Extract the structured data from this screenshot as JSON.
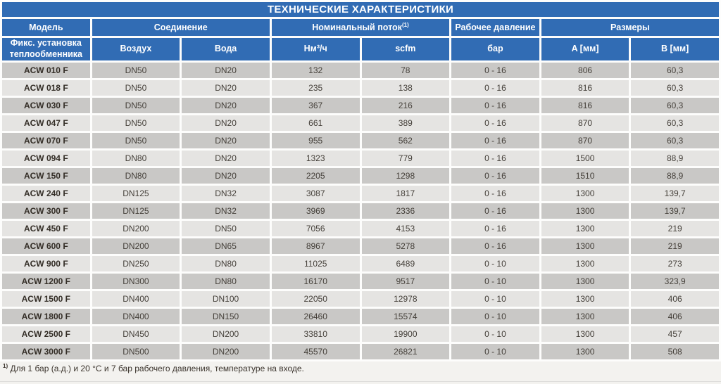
{
  "colors": {
    "header_blue": "#316cb4",
    "row_dark": "#c9c8c6",
    "row_light": "#e5e4e2",
    "page_background": "#f3f2ef",
    "header_text": "#ffffff",
    "body_text": "#45403a"
  },
  "table": {
    "title": "ТЕХНИЧЕСКИЕ ХАРАКТЕРИСТИКИ",
    "header": {
      "groups": [
        {
          "label": "Модель"
        },
        {
          "label": "Соединение"
        },
        {
          "label": "Номинальный поток",
          "sup": "(1)"
        },
        {
          "label": "Рабочее давление"
        },
        {
          "label": "Размеры"
        }
      ],
      "subheaders": [
        "Фикс. установка теплообменника",
        "Воздух",
        "Вода",
        "Нм³/ч",
        "scfm",
        "бар",
        "A [мм]",
        "B [мм]"
      ]
    },
    "row_fields": [
      "model",
      "air",
      "water",
      "nm3_h",
      "scfm",
      "pressure_bar",
      "a_mm",
      "b_mm"
    ],
    "rows": [
      {
        "model": "ACW 010 F",
        "air": "DN50",
        "water": "DN20",
        "nm3_h": "132",
        "scfm": "78",
        "pressure_bar": "0 - 16",
        "a_mm": "806",
        "b_mm": "60,3"
      },
      {
        "model": "ACW 018 F",
        "air": "DN50",
        "water": "DN20",
        "nm3_h": "235",
        "scfm": "138",
        "pressure_bar": "0 - 16",
        "a_mm": "816",
        "b_mm": "60,3"
      },
      {
        "model": "ACW 030 F",
        "air": "DN50",
        "water": "DN20",
        "nm3_h": "367",
        "scfm": "216",
        "pressure_bar": "0 - 16",
        "a_mm": "816",
        "b_mm": "60,3"
      },
      {
        "model": "ACW 047 F",
        "air": "DN50",
        "water": "DN20",
        "nm3_h": "661",
        "scfm": "389",
        "pressure_bar": "0 - 16",
        "a_mm": "870",
        "b_mm": "60,3"
      },
      {
        "model": "ACW 070 F",
        "air": "DN50",
        "water": "DN20",
        "nm3_h": "955",
        "scfm": "562",
        "pressure_bar": "0 - 16",
        "a_mm": "870",
        "b_mm": "60,3"
      },
      {
        "model": "ACW 094 F",
        "air": "DN80",
        "water": "DN20",
        "nm3_h": "1323",
        "scfm": "779",
        "pressure_bar": "0 - 16",
        "a_mm": "1500",
        "b_mm": "88,9"
      },
      {
        "model": "ACW 150 F",
        "air": "DN80",
        "water": "DN20",
        "nm3_h": "2205",
        "scfm": "1298",
        "pressure_bar": "0 - 16",
        "a_mm": "1510",
        "b_mm": "88,9"
      },
      {
        "model": "ACW 240 F",
        "air": "DN125",
        "water": "DN32",
        "nm3_h": "3087",
        "scfm": "1817",
        "pressure_bar": "0 - 16",
        "a_mm": "1300",
        "b_mm": "139,7"
      },
      {
        "model": "ACW 300 F",
        "air": "DN125",
        "water": "DN32",
        "nm3_h": "3969",
        "scfm": "2336",
        "pressure_bar": "0 - 16",
        "a_mm": "1300",
        "b_mm": "139,7"
      },
      {
        "model": "ACW 450 F",
        "air": "DN200",
        "water": "DN50",
        "nm3_h": "7056",
        "scfm": "4153",
        "pressure_bar": "0 - 16",
        "a_mm": "1300",
        "b_mm": "219"
      },
      {
        "model": "ACW 600 F",
        "air": "DN200",
        "water": "DN65",
        "nm3_h": "8967",
        "scfm": "5278",
        "pressure_bar": "0 - 16",
        "a_mm": "1300",
        "b_mm": "219"
      },
      {
        "model": "ACW 900 F",
        "air": "DN250",
        "water": "DN80",
        "nm3_h": "11025",
        "scfm": "6489",
        "pressure_bar": "0 - 10",
        "a_mm": "1300",
        "b_mm": "273"
      },
      {
        "model": "ACW 1200 F",
        "air": "DN300",
        "water": "DN80",
        "nm3_h": "16170",
        "scfm": "9517",
        "pressure_bar": "0 - 10",
        "a_mm": "1300",
        "b_mm": "323,9"
      },
      {
        "model": "ACW 1500 F",
        "air": "DN400",
        "water": "DN100",
        "nm3_h": "22050",
        "scfm": "12978",
        "pressure_bar": "0 - 10",
        "a_mm": "1300",
        "b_mm": "406"
      },
      {
        "model": "ACW 1800 F",
        "air": "DN400",
        "water": "DN150",
        "nm3_h": "26460",
        "scfm": "15574",
        "pressure_bar": "0 - 10",
        "a_mm": "1300",
        "b_mm": "406"
      },
      {
        "model": "ACW 2500 F",
        "air": "DN450",
        "water": "DN200",
        "nm3_h": "33810",
        "scfm": "19900",
        "pressure_bar": "0 - 10",
        "a_mm": "1300",
        "b_mm": "457"
      },
      {
        "model": "ACW 3000 F",
        "air": "DN500",
        "water": "DN200",
        "nm3_h": "45570",
        "scfm": "26821",
        "pressure_bar": "0 - 10",
        "a_mm": "1300",
        "b_mm": "508"
      }
    ]
  },
  "footnote": {
    "marker": "1)",
    "text": "Для 1 бар (а.д.) и 20 °C и 7 бар рабочего давления, температуре на входе."
  }
}
